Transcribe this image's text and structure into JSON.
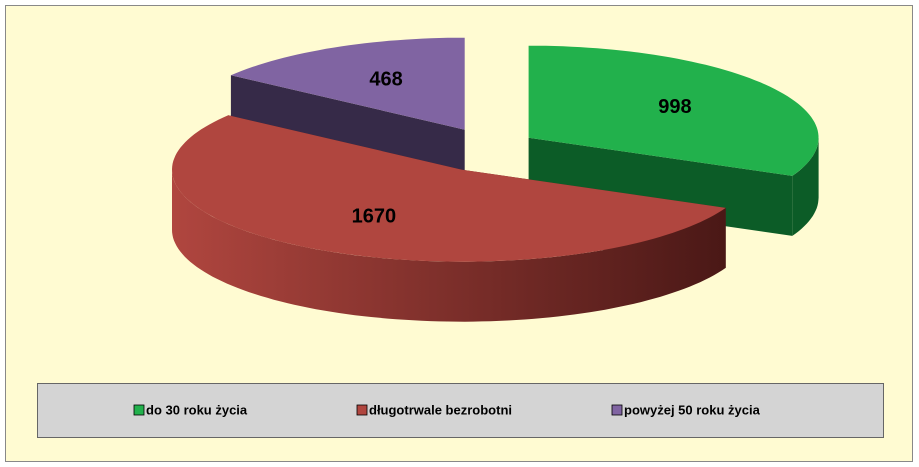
{
  "chart_data": {
    "type": "pie",
    "categories": [
      "do 30 roku życia",
      "długotrwale bezrobotni",
      "powyżej 50 roku życia"
    ],
    "values": [
      998,
      1670,
      468
    ],
    "colors": [
      "#22b14c",
      "#b0463f",
      "#8064a2"
    ],
    "side_colors": [
      "#0c5c27",
      "#5a1f1c",
      "#362a48"
    ],
    "legend": "bottom"
  }
}
